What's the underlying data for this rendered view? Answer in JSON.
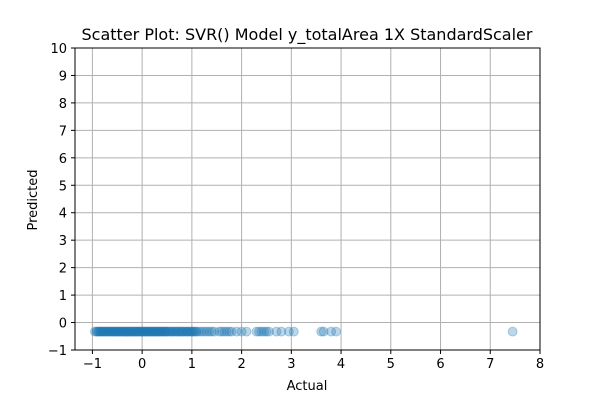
{
  "chart_data": {
    "type": "scatter",
    "title": "Scatter Plot: SVR() Model y_totalArea 1X StandardScaler",
    "xlabel": "Actual",
    "ylabel": "Predicted",
    "xlim": [
      -1.35,
      8.0
    ],
    "ylim": [
      -1,
      10
    ],
    "x_ticks": [
      -1,
      0,
      1,
      2,
      3,
      4,
      5,
      6,
      7,
      8
    ],
    "y_ticks": [
      -1,
      0,
      1,
      2,
      3,
      4,
      5,
      6,
      7,
      8,
      9,
      10
    ],
    "grid": true,
    "marker_color": "#1f77b4",
    "marker_alpha": 0.3,
    "series": [
      {
        "x": [
          -0.95,
          -0.92,
          -0.9,
          -0.88,
          -0.86,
          -0.84,
          -0.82,
          -0.8,
          -0.78,
          -0.76,
          -0.74,
          -0.72,
          -0.7,
          -0.68,
          -0.66,
          -0.64,
          -0.62,
          -0.6,
          -0.58,
          -0.56,
          -0.54,
          -0.52,
          -0.5,
          -0.48,
          -0.46,
          -0.44,
          -0.42,
          -0.4,
          -0.38,
          -0.36,
          -0.34,
          -0.32,
          -0.3,
          -0.28,
          -0.26,
          -0.24,
          -0.22,
          -0.2,
          -0.18,
          -0.16,
          -0.14,
          -0.12,
          -0.1,
          -0.08,
          -0.06,
          -0.04,
          -0.02,
          0.0,
          0.02,
          0.04,
          0.06,
          0.08,
          0.1,
          0.12,
          0.14,
          0.16,
          0.18,
          0.2,
          0.22,
          0.24,
          0.26,
          0.28,
          0.3,
          0.32,
          0.34,
          0.36,
          0.38,
          0.4,
          0.42,
          0.44,
          0.46,
          0.48,
          0.5,
          0.52,
          0.55,
          0.58,
          0.6,
          0.62,
          0.65,
          0.68,
          0.7,
          0.72,
          0.75,
          0.78,
          0.8,
          0.82,
          0.85,
          0.88,
          0.9,
          0.92,
          0.95,
          0.98,
          1.0,
          1.02,
          1.05,
          1.08,
          1.1,
          1.15,
          1.2,
          1.25,
          1.3,
          1.35,
          1.4,
          1.45,
          1.55,
          1.6,
          1.65,
          1.7,
          1.75,
          1.8,
          1.9,
          2.0,
          2.1,
          2.3,
          2.35,
          2.4,
          2.45,
          2.5,
          2.55,
          2.7,
          2.8,
          2.95,
          3.05,
          3.6,
          3.65,
          3.8,
          3.9,
          7.45
        ],
        "y": [
          -0.33,
          -0.33,
          -0.33,
          -0.33,
          -0.33,
          -0.33,
          -0.33,
          -0.33,
          -0.33,
          -0.33,
          -0.33,
          -0.33,
          -0.33,
          -0.33,
          -0.33,
          -0.33,
          -0.33,
          -0.33,
          -0.33,
          -0.33,
          -0.33,
          -0.33,
          -0.33,
          -0.33,
          -0.33,
          -0.33,
          -0.33,
          -0.33,
          -0.33,
          -0.33,
          -0.33,
          -0.33,
          -0.33,
          -0.33,
          -0.33,
          -0.33,
          -0.33,
          -0.33,
          -0.33,
          -0.33,
          -0.33,
          -0.33,
          -0.33,
          -0.33,
          -0.33,
          -0.33,
          -0.33,
          -0.33,
          -0.33,
          -0.33,
          -0.33,
          -0.33,
          -0.33,
          -0.33,
          -0.33,
          -0.33,
          -0.33,
          -0.33,
          -0.33,
          -0.33,
          -0.33,
          -0.33,
          -0.33,
          -0.33,
          -0.33,
          -0.33,
          -0.33,
          -0.33,
          -0.33,
          -0.33,
          -0.33,
          -0.33,
          -0.33,
          -0.33,
          -0.33,
          -0.33,
          -0.33,
          -0.33,
          -0.33,
          -0.33,
          -0.33,
          -0.33,
          -0.33,
          -0.33,
          -0.33,
          -0.33,
          -0.33,
          -0.33,
          -0.33,
          -0.33,
          -0.33,
          -0.33,
          -0.33,
          -0.33,
          -0.33,
          -0.33,
          -0.33,
          -0.33,
          -0.33,
          -0.33,
          -0.33,
          -0.33,
          -0.33,
          -0.33,
          -0.33,
          -0.33,
          -0.33,
          -0.33,
          -0.33,
          -0.33,
          -0.33,
          -0.33,
          -0.33,
          -0.33,
          -0.33,
          -0.33,
          -0.33,
          -0.33,
          -0.33,
          -0.33,
          -0.33,
          -0.33,
          -0.33,
          -0.33,
          -0.33,
          -0.33,
          -0.33,
          -0.33
        ]
      }
    ]
  }
}
